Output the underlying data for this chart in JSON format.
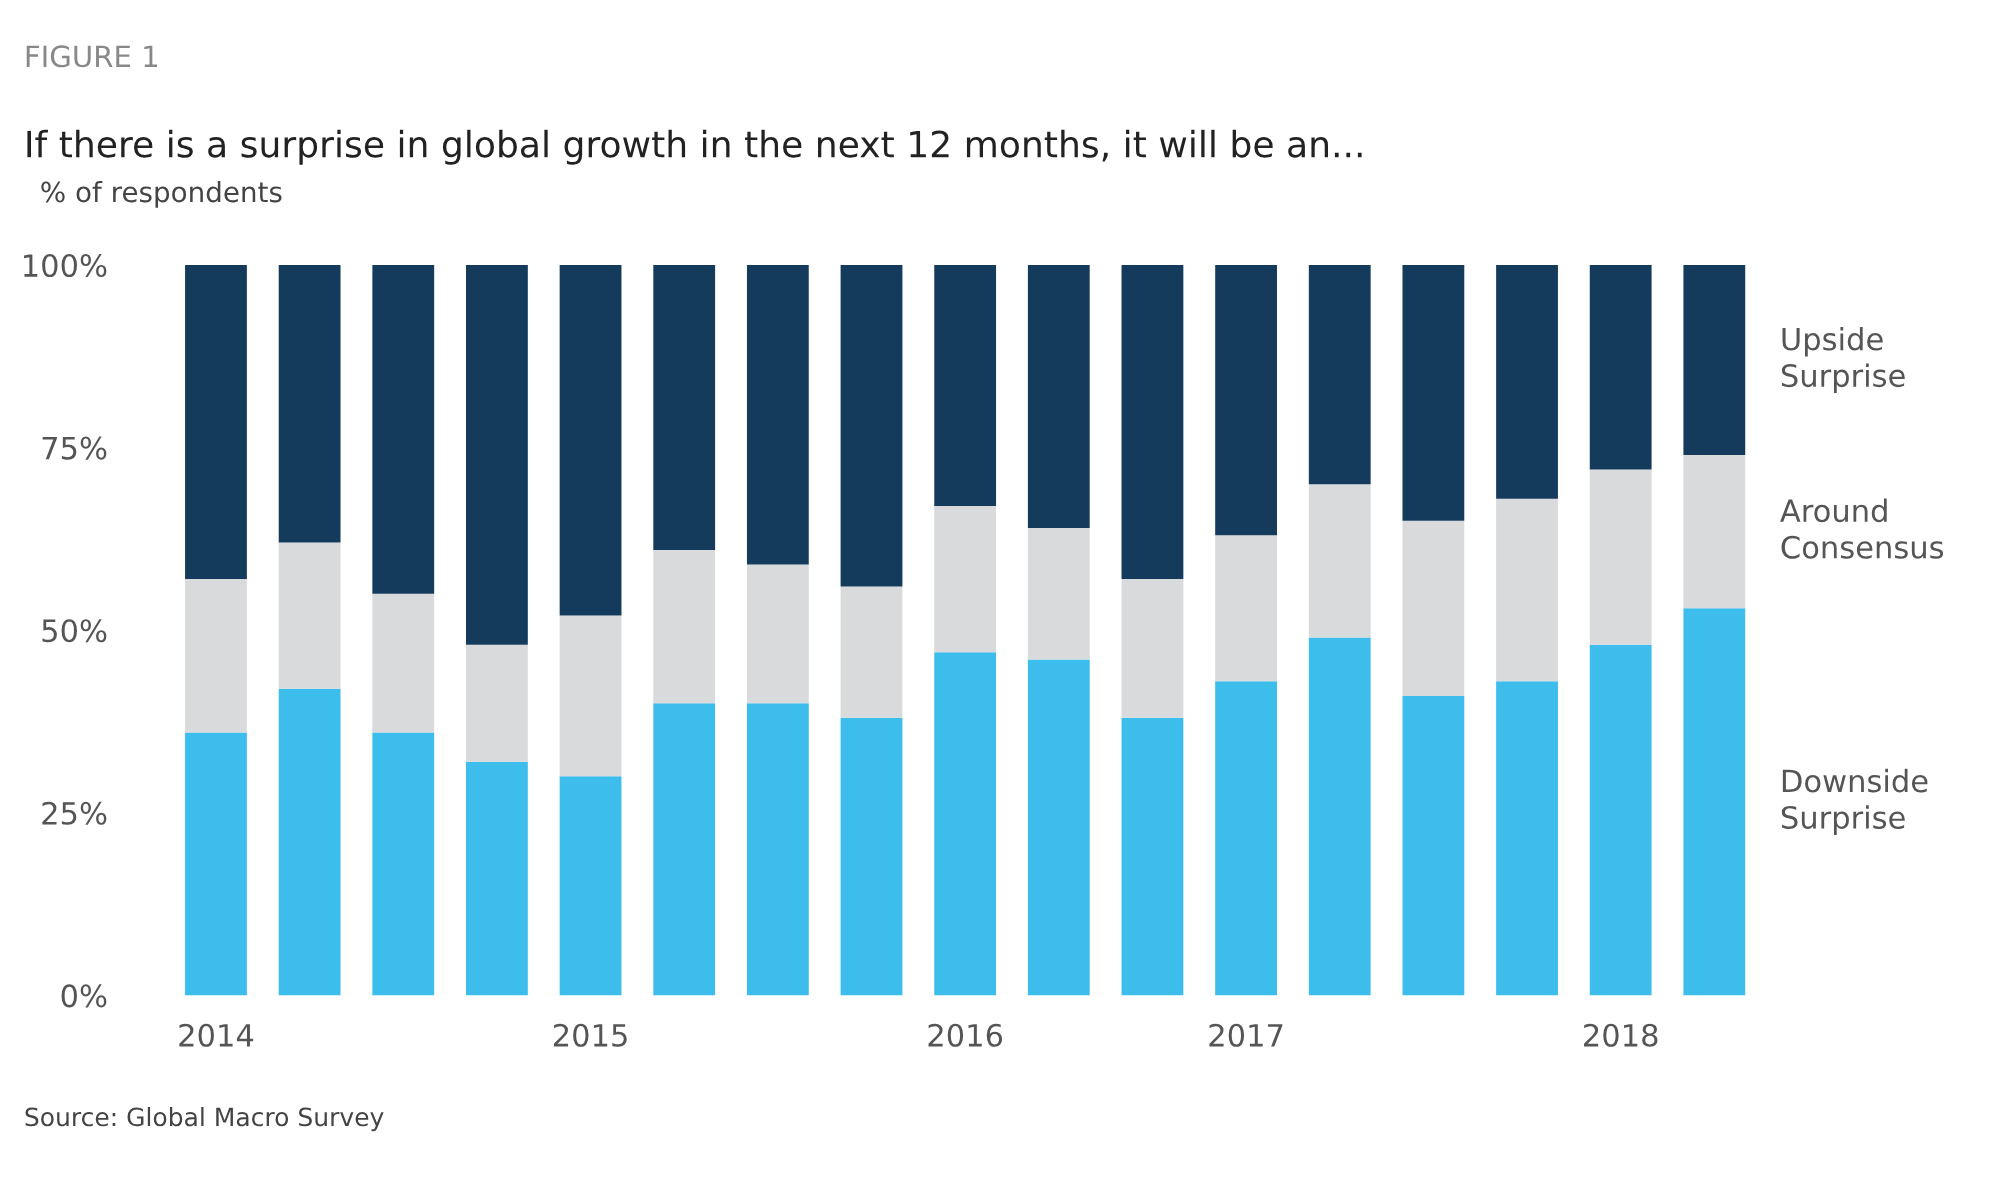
{
  "chart_data": {
    "type": "bar",
    "stacked": true,
    "title": "If there is a surprise in global growth in the next 12 months, it will be an...",
    "ylabel": "% of respondents",
    "annotations": [
      "FIGURE 1",
      "Source: Global Macro Survey"
    ],
    "categories": [
      "2014",
      null,
      null,
      null,
      "2015",
      null,
      null,
      null,
      "2016",
      null,
      null,
      "2017",
      null,
      null,
      null,
      "2018",
      null
    ],
    "series": [
      {
        "name": "Downside Surprise",
        "color": "#3dbdec",
        "values": [
          36,
          42,
          36,
          32,
          30,
          40,
          40,
          38,
          47,
          46,
          38,
          43,
          49,
          41,
          43,
          48,
          53
        ]
      },
      {
        "name": "Around Consensus",
        "color": "#d9dadc",
        "values": [
          21,
          20,
          19,
          16,
          22,
          21,
          19,
          18,
          20,
          18,
          19,
          20,
          21,
          24,
          25,
          24,
          21
        ]
      },
      {
        "name": "Upside Surprise",
        "color": "#143a5c",
        "values": [
          43,
          38,
          45,
          52,
          48,
          39,
          41,
          44,
          33,
          36,
          43,
          37,
          30,
          35,
          32,
          28,
          26
        ]
      }
    ],
    "ylim": [
      0,
      100
    ],
    "yticks": [
      {
        "value": 0,
        "label": "0%"
      },
      {
        "value": 25,
        "label": "25%"
      },
      {
        "value": 50,
        "label": "50%"
      },
      {
        "value": 75,
        "label": "75%"
      },
      {
        "value": 100,
        "label": "100%"
      }
    ],
    "grid": false,
    "legend": "right"
  }
}
